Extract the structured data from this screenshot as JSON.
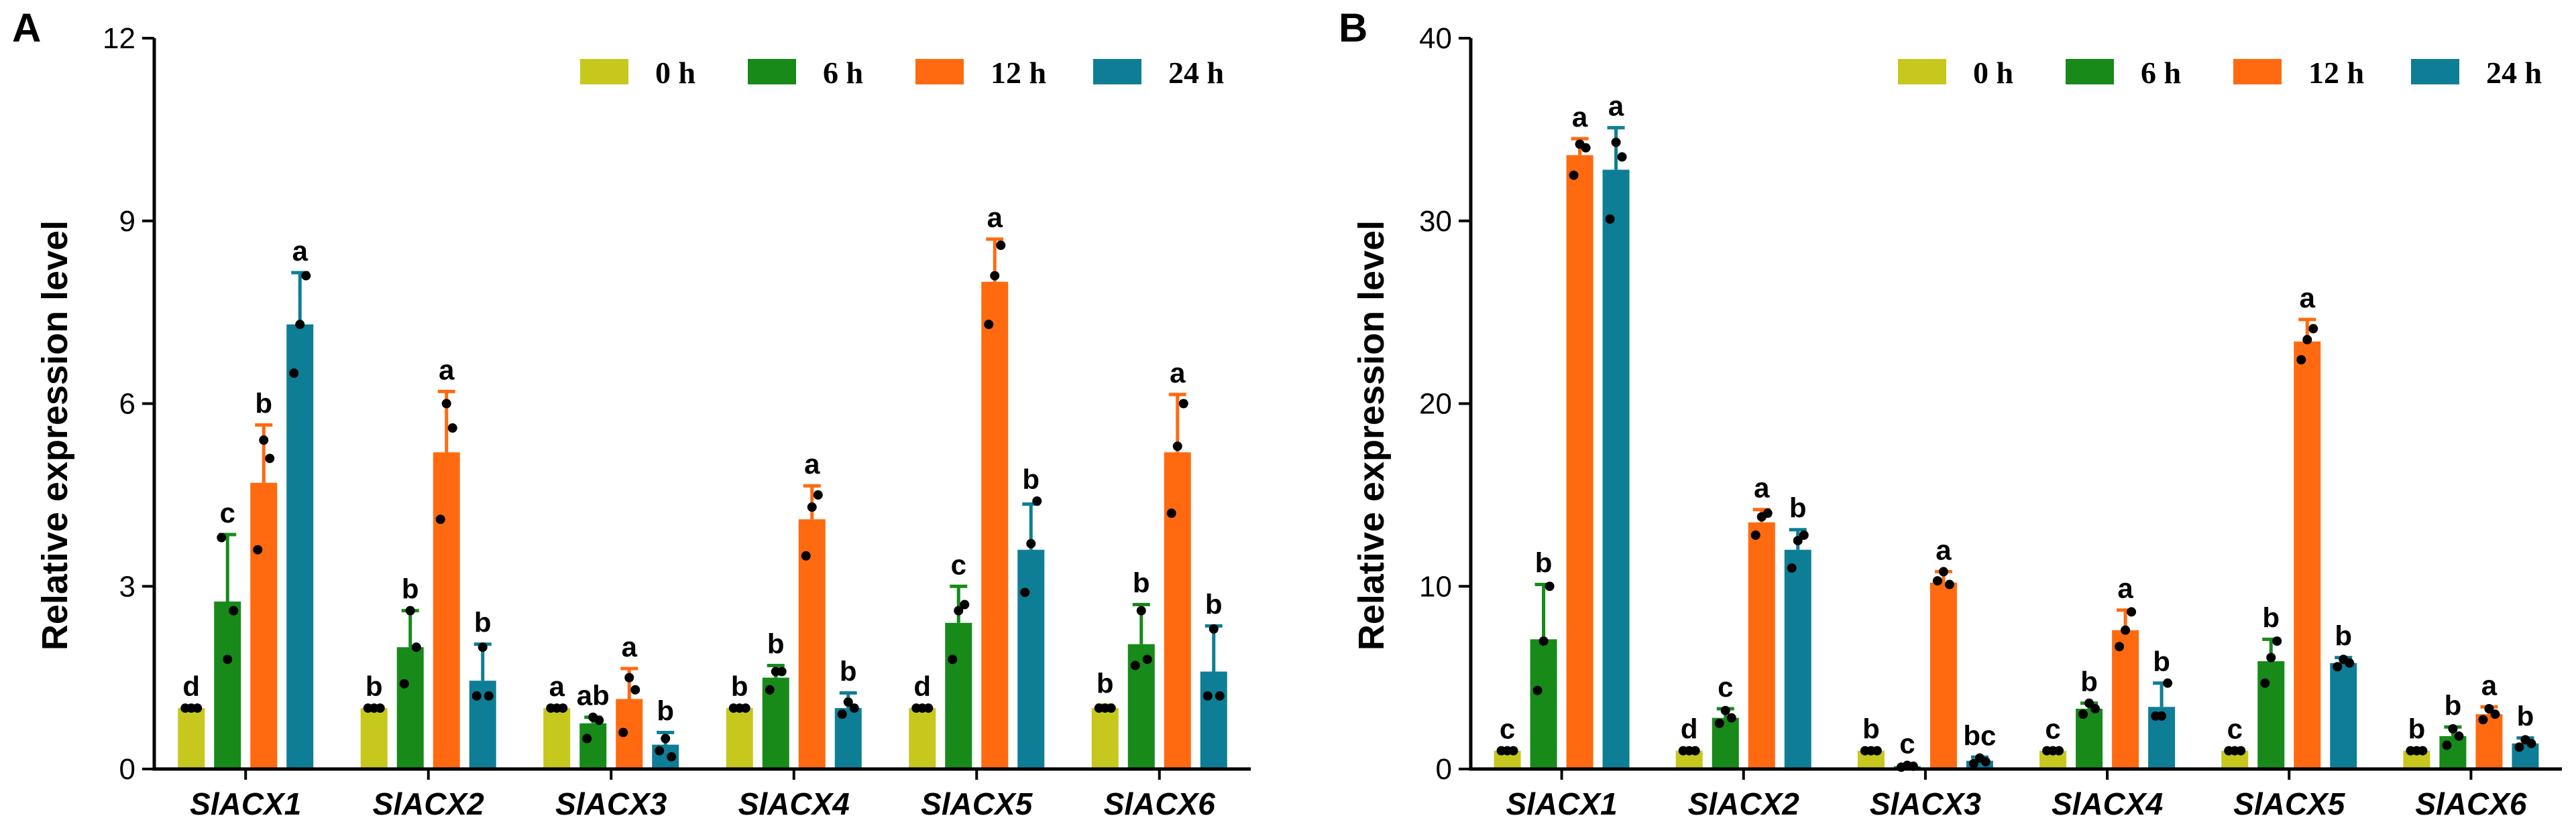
{
  "legend": [
    {
      "label": "0 h",
      "color": "#c6c81e"
    },
    {
      "label": "6 h",
      "color": "#178a1a"
    },
    {
      "label": "12 h",
      "color": "#ff6a10"
    },
    {
      "label": "24 h",
      "color": "#0e7e96"
    }
  ],
  "chart_data": [
    {
      "type": "bar",
      "panel": "A",
      "ylabel": "Relative expression level",
      "xlabel": "",
      "ylim": [
        0,
        12
      ],
      "yticks": [
        "0",
        "3",
        "6",
        "9",
        "12"
      ],
      "ytick_values": [
        0,
        3,
        6,
        9,
        12
      ],
      "categories": [
        "SlACX1",
        "SlACX2",
        "SlACX3",
        "SlACX4",
        "SlACX5",
        "SlACX6"
      ],
      "legend_position": "top-right",
      "series": [
        {
          "name": "0 h",
          "values": [
            1.0,
            1.0,
            1.0,
            1.0,
            1.0,
            1.0
          ],
          "errors": [
            0.0,
            0.0,
            0.0,
            0.0,
            0.0,
            0.05
          ],
          "points": [
            [
              1.0,
              1.0,
              1.0
            ],
            [
              1.0,
              1.0,
              1.0
            ],
            [
              1.0,
              1.0,
              1.0
            ],
            [
              1.0,
              1.0,
              1.0
            ],
            [
              1.0,
              1.0,
              1.0
            ],
            [
              1.0,
              1.0,
              1.0
            ]
          ],
          "letters": [
            "d",
            "b",
            "a",
            "b",
            "d",
            "b"
          ]
        },
        {
          "name": "6 h",
          "values": [
            2.75,
            2.0,
            0.75,
            1.5,
            2.4,
            2.05
          ],
          "errors": [
            1.1,
            0.6,
            0.1,
            0.2,
            0.6,
            0.65
          ],
          "points": [
            [
              3.8,
              1.8,
              2.6
            ],
            [
              1.4,
              2.6,
              2.0
            ],
            [
              0.5,
              0.85,
              0.8
            ],
            [
              1.3,
              1.6,
              1.6
            ],
            [
              1.8,
              2.6,
              2.7
            ],
            [
              1.7,
              2.6,
              1.8
            ]
          ],
          "letters": [
            "c",
            "b",
            "ab",
            "b",
            "c",
            "b"
          ]
        },
        {
          "name": "12 h",
          "values": [
            4.7,
            5.2,
            1.15,
            4.1,
            8.0,
            5.2
          ],
          "errors": [
            0.95,
            1.0,
            0.5,
            0.55,
            0.7,
            0.95
          ],
          "points": [
            [
              3.6,
              5.4,
              5.1
            ],
            [
              4.1,
              6.0,
              5.6
            ],
            [
              0.6,
              1.5,
              1.3
            ],
            [
              3.5,
              4.3,
              4.5
            ],
            [
              7.3,
              8.1,
              8.6
            ],
            [
              4.2,
              5.3,
              6.0
            ]
          ],
          "letters": [
            "b",
            "a",
            "a",
            "a",
            "a",
            "a"
          ]
        },
        {
          "name": "24 h",
          "values": [
            7.3,
            1.45,
            0.4,
            1.0,
            3.6,
            1.6
          ],
          "errors": [
            0.85,
            0.6,
            0.2,
            0.25,
            0.75,
            0.75
          ],
          "points": [
            [
              6.5,
              7.3,
              8.1
            ],
            [
              1.2,
              2.0,
              1.2
            ],
            [
              0.3,
              0.5,
              0.2
            ],
            [
              0.9,
              1.1,
              1.0
            ],
            [
              2.9,
              3.7,
              4.4
            ],
            [
              1.2,
              2.3,
              1.2
            ]
          ],
          "letters": [
            "a",
            "b",
            "b",
            "b",
            "b",
            "b"
          ]
        }
      ]
    },
    {
      "type": "bar",
      "panel": "B",
      "ylabel": "Relative expression level",
      "xlabel": "",
      "ylim": [
        0,
        40
      ],
      "yticks": [
        "0",
        "10",
        "20",
        "30",
        "40"
      ],
      "ytick_values": [
        0,
        10,
        20,
        30,
        40
      ],
      "categories": [
        "SlACX1",
        "SlACX2",
        "SlACX3",
        "SlACX4",
        "SlACX5",
        "SlACX6"
      ],
      "legend_position": "top-right",
      "series": [
        {
          "name": "0 h",
          "values": [
            1.0,
            1.0,
            1.0,
            1.0,
            1.0,
            1.0
          ],
          "errors": [
            0.0,
            0.0,
            0.0,
            0.0,
            0.0,
            0.0
          ],
          "points": [
            [
              1.0,
              1.0,
              1.0
            ],
            [
              1.0,
              1.0,
              1.0
            ],
            [
              1.0,
              1.0,
              1.0
            ],
            [
              1.0,
              1.0,
              1.0
            ],
            [
              1.0,
              1.0,
              1.0
            ],
            [
              1.0,
              1.0,
              1.0
            ]
          ],
          "letters": [
            "c",
            "d",
            "b",
            "c",
            "c",
            "b"
          ]
        },
        {
          "name": "6 h",
          "values": [
            7.1,
            2.8,
            0.15,
            3.3,
            5.9,
            1.8
          ],
          "errors": [
            3.0,
            0.5,
            0.05,
            0.3,
            1.2,
            0.5
          ],
          "points": [
            [
              4.3,
              7.0,
              10.0
            ],
            [
              2.5,
              3.2,
              2.8
            ],
            [
              0.1,
              0.2,
              0.15
            ],
            [
              3.0,
              3.6,
              3.3
            ],
            [
              4.7,
              6.1,
              7.0
            ],
            [
              1.3,
              2.2,
              1.8
            ]
          ],
          "letters": [
            "b",
            "c",
            "c",
            "b",
            "b",
            "b"
          ]
        },
        {
          "name": "12 h",
          "values": [
            33.6,
            13.5,
            10.2,
            7.6,
            23.4,
            3.0
          ],
          "errors": [
            0.9,
            0.7,
            0.6,
            1.1,
            1.2,
            0.4
          ],
          "points": [
            [
              32.5,
              34.2,
              34.0
            ],
            [
              12.8,
              13.8,
              14.0
            ],
            [
              10.3,
              10.8,
              10.1
            ],
            [
              6.7,
              7.6,
              8.6
            ],
            [
              22.4,
              23.5,
              24.1
            ],
            [
              2.7,
              3.3,
              3.0
            ]
          ],
          "letters": [
            "a",
            "a",
            "a",
            "a",
            "a",
            "a"
          ]
        },
        {
          "name": "24 h",
          "values": [
            32.8,
            12.0,
            0.45,
            3.4,
            5.8,
            1.4
          ],
          "errors": [
            2.3,
            1.1,
            0.2,
            1.3,
            0.3,
            0.3
          ],
          "points": [
            [
              30.1,
              34.3,
              33.5
            ],
            [
              11.0,
              12.5,
              12.8
            ],
            [
              0.3,
              0.6,
              0.4
            ],
            [
              2.9,
              2.9,
              4.7
            ],
            [
              5.6,
              6.0,
              5.8
            ],
            [
              1.2,
              1.6,
              1.4
            ]
          ],
          "letters": [
            "a",
            "b",
            "bc",
            "b",
            "b",
            "b"
          ]
        }
      ]
    }
  ]
}
